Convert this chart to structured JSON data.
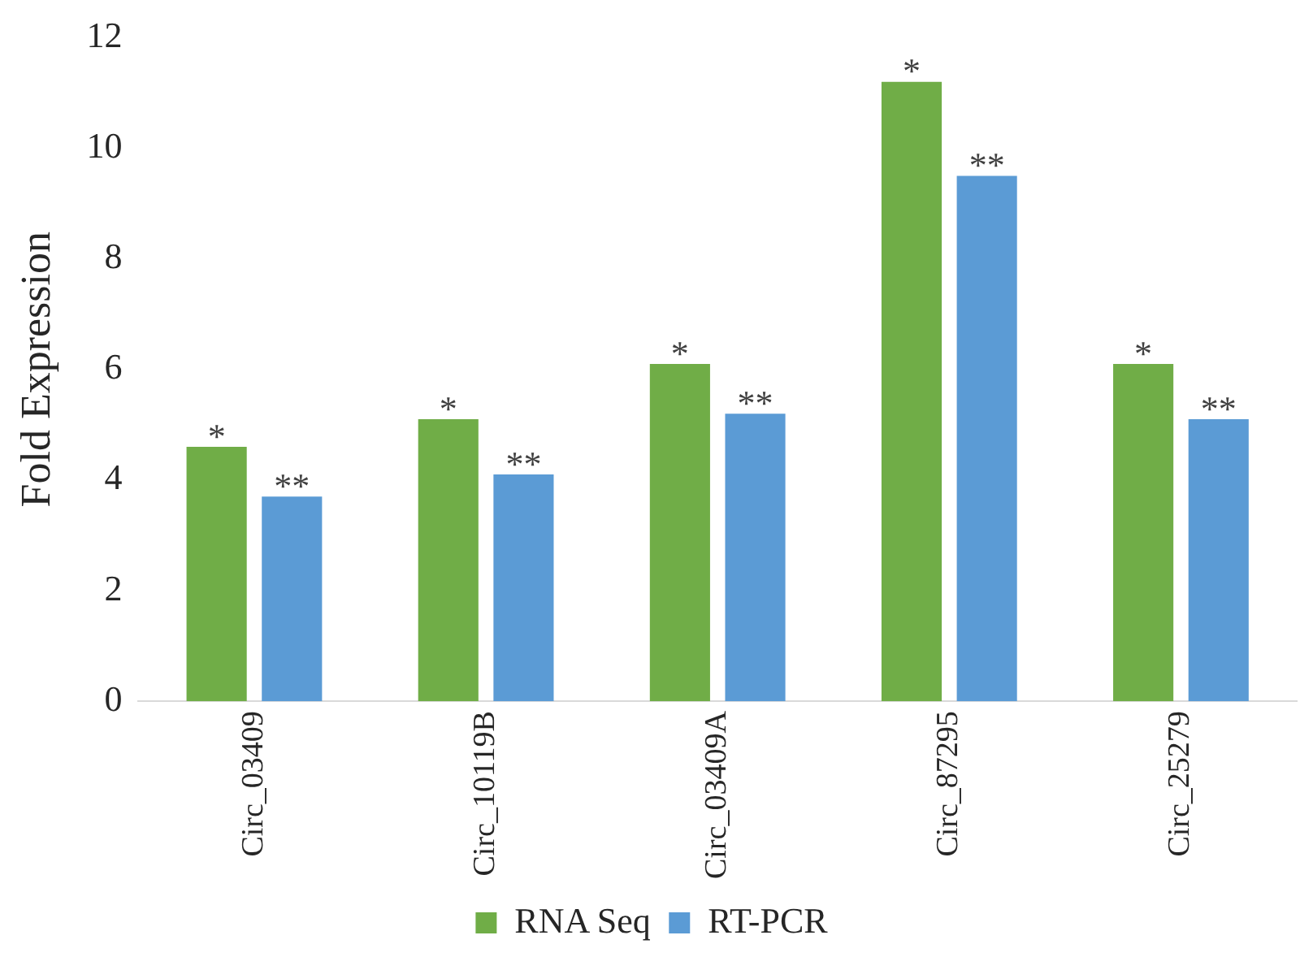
{
  "chart_data": {
    "type": "bar",
    "ylabel": "Fold Expression",
    "categories": [
      "Circ_03409",
      "Circ_10119B",
      "Circ_03409A",
      "Circ_87295",
      "Circ_25279"
    ],
    "series": [
      {
        "name": "RNA Seq",
        "color": "#70ad47",
        "values": [
          4.6,
          5.1,
          6.1,
          11.2,
          6.1
        ]
      },
      {
        "name": "RT-PCR",
        "color": "#5b9bd5",
        "values": [
          3.7,
          4.1,
          5.2,
          9.5,
          5.1
        ]
      }
    ],
    "ylim": [
      0,
      12
    ],
    "yticks": [
      0,
      2,
      4,
      6,
      8,
      10,
      12
    ],
    "grid": false,
    "legend": "bottom",
    "annotations": [
      {
        "text": "*",
        "x": "Circ_03409",
        "y": 4.6
      },
      {
        "text": "**",
        "x": "Circ_03409",
        "y": 3.7
      },
      {
        "text": "*",
        "x": "Circ_10119B",
        "y": 5.1
      },
      {
        "text": "**",
        "x": "Circ_10119B",
        "y": 4.1
      },
      {
        "text": "*",
        "x": "Circ_03409A",
        "y": 6.1
      },
      {
        "text": "**",
        "x": "Circ_03409A",
        "y": 5.2
      },
      {
        "text": "*",
        "x": "Circ_87295",
        "y": 11.2
      },
      {
        "text": "**",
        "x": "Circ_87295",
        "y": 9.5
      },
      {
        "text": "*",
        "x": "Circ_25279",
        "y": 6.1
      },
      {
        "text": "**",
        "x": "Circ_25279",
        "y": 5.1
      }
    ]
  }
}
